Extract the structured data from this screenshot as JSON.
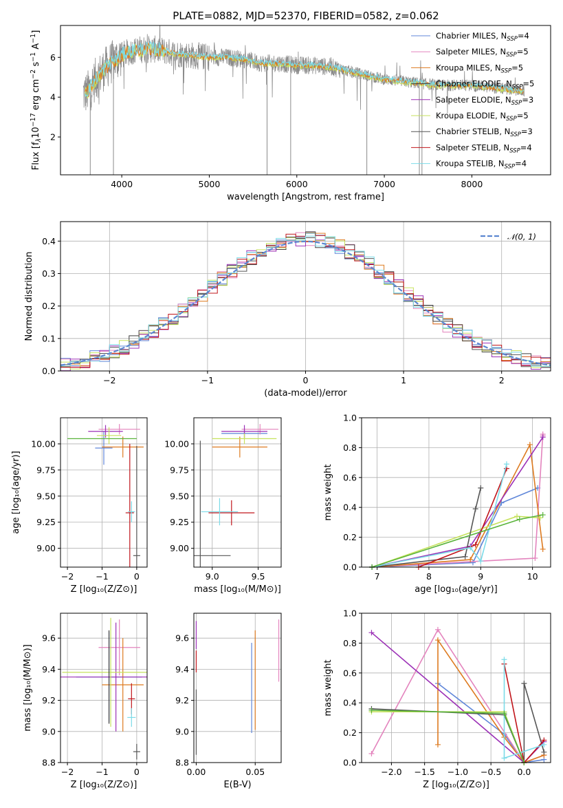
{
  "title": "PLATE=0882, MJD=52370, FIBERID=0582, z=0.062",
  "colors": {
    "Chabrier MILES": "#5f86d9",
    "Salpeter MILES": "#e383bd",
    "Kroupa MILES": "#dd7a1f",
    "Chabrier ELODIE": "#3f3f3f",
    "Salpeter ELODIE": "#9b2fb6",
    "Kroupa ELODIE": "#c6e25c",
    "Chabrier STELIB": "#555555",
    "Salpeter STELIB": "#c0141a",
    "Kroupa STELIB": "#7bdbe8",
    "normal": "#5b86d0",
    "green": "#59b33a"
  },
  "chart_data": [
    {
      "type": "line",
      "panel": "spectrum",
      "title": "PLATE=0882, MJD=52370, FIBERID=0582, z=0.062",
      "xlabel": "wavelength [Angstrom, rest frame]",
      "ylabel_text": "Flux [f",
      "ylabel_sub": "λ",
      "ylabel_rest": "10",
      "ylabel_sup1": "−17",
      "ylabel_mid": " erg cm",
      "ylabel_sup2": "−2",
      "ylabel_s": " s",
      "ylabel_sup3": "−1",
      "ylabel_a": " A",
      "ylabel_sup4": "−1",
      "ylabel_end": "]",
      "xlim": [
        3300,
        8900
      ],
      "ylim": [
        0.1,
        7.6
      ],
      "xticks": [
        4000,
        5000,
        6000,
        7000,
        8000
      ],
      "xtick_labels": [
        "4000",
        "5000",
        "6000",
        "7000",
        "8000"
      ],
      "yticks": [
        2,
        4,
        6
      ],
      "ytick_labels": [
        "2",
        "4",
        "6"
      ],
      "legend_position": "right",
      "legend": [
        {
          "name": "Chabrier MILES",
          "nssp": "4"
        },
        {
          "name": "Salpeter MILES",
          "nssp": "5"
        },
        {
          "name": "Kroupa MILES",
          "nssp": "5"
        },
        {
          "name": "Chabrier ELODIE",
          "nssp": "5"
        },
        {
          "name": "Salpeter ELODIE",
          "nssp": "3"
        },
        {
          "name": "Kroupa ELODIE",
          "nssp": "5"
        },
        {
          "name": "Chabrier STELIB",
          "nssp": "3"
        },
        {
          "name": "Salpeter STELIB",
          "nssp": "4"
        },
        {
          "name": "Kroupa STELIB",
          "nssp": "4"
        }
      ],
      "legend_nsub": "SSP",
      "legend_nprefix": "N",
      "continuum": {
        "x": [
          3600,
          3700,
          3800,
          3900,
          4000,
          4100,
          4200,
          4400,
          4600,
          4800,
          5000,
          5200,
          5400,
          5600,
          5800,
          6000,
          6200,
          6400,
          6600,
          6800,
          7000,
          7200,
          7400,
          7600,
          7800,
          8000,
          8200,
          8400,
          8600
        ],
        "y": [
          4.2,
          4.9,
          5.4,
          5.8,
          6.1,
          6.3,
          6.4,
          6.4,
          6.2,
          6.1,
          6.0,
          6.0,
          5.9,
          5.7,
          5.7,
          5.6,
          5.6,
          5.5,
          5.3,
          5.1,
          4.9,
          4.8,
          4.7,
          4.6,
          4.6,
          4.6,
          4.5,
          4.4,
          4.3
        ]
      },
      "spikes": [
        {
          "x": 3640,
          "y": 0.1
        },
        {
          "x": 3905,
          "y": 0.1
        },
        {
          "x": 5660,
          "y": 0.1
        },
        {
          "x": 5930,
          "y": 0.1
        },
        {
          "x": 6800,
          "y": 0.1
        },
        {
          "x": 7400,
          "y": 0.1
        },
        {
          "x": 7430,
          "y": 0.1
        }
      ]
    },
    {
      "type": "step",
      "panel": "residuals",
      "xlabel": "(data-model)/error",
      "ylabel": "Normed distribution",
      "xlim": [
        -2.5,
        2.5
      ],
      "ylim": [
        0,
        0.46
      ],
      "xticks": [
        -2,
        -1,
        0,
        1,
        2
      ],
      "xtick_labels": [
        "−2",
        "−1",
        "0",
        "1",
        "2"
      ],
      "yticks": [
        0,
        0.1,
        0.2,
        0.3,
        0.4
      ],
      "ytick_labels": [
        "0.0",
        "0.1",
        "0.2",
        "0.3",
        "0.4"
      ],
      "grid": true,
      "legend_position": "top-right",
      "legend_label": "𝒩(0, 1)",
      "bin_width": 0.1
    },
    {
      "type": "scatter",
      "panel": "age-vs-Z",
      "xlabel": "Z [log₁₀(Z/Z⊙)]",
      "ylabel": "age  [log₁₀(age/yr)]",
      "xlim": [
        -2.2,
        0.3
      ],
      "ylim": [
        8.82,
        10.25
      ],
      "xticks": [
        -2,
        -1,
        0
      ],
      "xtick_labels": [
        "−2",
        "−1",
        "0"
      ],
      "yticks": [
        9.0,
        9.25,
        9.5,
        9.75,
        10.0
      ],
      "ytick_labels": [
        "9.00",
        "9.25",
        "9.50",
        "9.75",
        "10.00"
      ],
      "grid": true,
      "points": [
        {
          "series": "Chabrier MILES",
          "x": -0.95,
          "y": 9.96,
          "xerr": 0.25,
          "yerr": 0.16
        },
        {
          "series": "Salpeter MILES",
          "x": -0.5,
          "y": 10.14,
          "xerr": 0.6,
          "yerr": 0.05
        },
        {
          "series": "Kroupa MILES",
          "x": -0.4,
          "y": 9.97,
          "xerr": 0.6,
          "yerr": 0.1
        },
        {
          "series": "Salpeter ELODIE",
          "x": -0.9,
          "y": 10.12,
          "xerr": 0.5,
          "yerr": 0.06
        },
        {
          "series": "Kroupa ELODIE",
          "x": -0.8,
          "y": 10.08,
          "xerr": 0.35,
          "yerr": 0.08
        },
        {
          "series": "Chabrier STELIB",
          "x": 0.0,
          "y": 8.93,
          "xerr": 0.1,
          "yerr": 1.05
        },
        {
          "series": "Salpeter STELIB",
          "x": -0.2,
          "y": 9.34,
          "xerr": 0.12,
          "yerr": 0.66
        },
        {
          "series": "Kroupa STELIB",
          "x": -0.15,
          "y": 9.35,
          "xerr": 0.1,
          "yerr": 0.1
        },
        {
          "series": "green",
          "x": -1.0,
          "y": 10.05,
          "xerr": 1.0,
          "yerr": 0.0
        }
      ]
    },
    {
      "type": "scatter",
      "panel": "age-vs-mass",
      "xlabel": "mass [log₁₀(M/M⊙)]",
      "xlim": [
        8.8,
        9.75
      ],
      "ylim": [
        8.82,
        10.25
      ],
      "xticks": [
        9.0,
        9.5
      ],
      "xtick_labels": [
        "9.0",
        "9.5"
      ],
      "yticks": [
        9.0,
        9.25,
        9.5,
        9.75,
        10.0
      ],
      "ytick_labels": [
        "9.00",
        "9.25",
        "9.50",
        "9.75",
        "10.00"
      ],
      "grid": true,
      "points": [
        {
          "series": "Chabrier MILES",
          "x": 9.35,
          "y": 10.1,
          "xerr": 0.25,
          "yerr": 0.05
        },
        {
          "series": "Salpeter MILES",
          "x": 9.52,
          "y": 10.14,
          "xerr": 0.2,
          "yerr": 0.05
        },
        {
          "series": "Kroupa MILES",
          "x": 9.3,
          "y": 9.97,
          "xerr": 0.3,
          "yerr": 0.1
        },
        {
          "series": "Salpeter ELODIE",
          "x": 9.35,
          "y": 10.12,
          "xerr": 0.25,
          "yerr": 0.06
        },
        {
          "series": "Kroupa ELODIE",
          "x": 9.35,
          "y": 10.05,
          "xerr": 0.35,
          "yerr": 0.05
        },
        {
          "series": "Chabrier STELIB",
          "x": 8.87,
          "y": 8.93,
          "xerr": 0.33,
          "yerr": 1.1
        },
        {
          "series": "Salpeter STELIB",
          "x": 9.21,
          "y": 9.34,
          "xerr": 0.25,
          "yerr": 0.12
        },
        {
          "series": "Kroupa STELIB",
          "x": 9.08,
          "y": 9.35,
          "xerr": 0.2,
          "yerr": 0.13
        }
      ]
    },
    {
      "type": "line",
      "panel": "mass-weight-vs-age",
      "xlabel": "age  [log₁₀(age/yr)]",
      "ylabel": "mass weight",
      "xlim": [
        6.7,
        10.35
      ],
      "ylim": [
        0,
        1.0
      ],
      "xticks": [
        7,
        8,
        9,
        10
      ],
      "xtick_labels": [
        "7",
        "8",
        "9",
        "10"
      ],
      "yticks": [
        0,
        0.2,
        0.4,
        0.6,
        0.8,
        1.0
      ],
      "ytick_labels": [
        "0.0",
        "0.2",
        "0.4",
        "0.6",
        "0.8",
        "1.0"
      ],
      "grid": true,
      "series": [
        {
          "name": "Chabrier MILES",
          "x": [
            6.9,
            8.85,
            9.4,
            10.1
          ],
          "y": [
            0.0,
            0.03,
            0.43,
            0.53
          ]
        },
        {
          "name": "Salpeter MILES",
          "x": [
            6.9,
            10.05,
            10.2,
            10.2
          ],
          "y": [
            0.0,
            0.06,
            0.89,
            0.88
          ]
        },
        {
          "name": "Kroupa MILES",
          "x": [
            6.9,
            8.8,
            9.95,
            10.2
          ],
          "y": [
            0.0,
            0.05,
            0.82,
            0.12
          ]
        },
        {
          "name": "Salpeter ELODIE",
          "x": [
            6.9,
            8.8,
            10.2
          ],
          "y": [
            0.0,
            0.14,
            0.87
          ]
        },
        {
          "name": "Kroupa ELODIE",
          "x": [
            6.9,
            9.7,
            10.15
          ],
          "y": [
            0.0,
            0.34,
            0.33
          ]
        },
        {
          "name": "Chabrier STELIB",
          "x": [
            6.9,
            8.7,
            8.9,
            9.0
          ],
          "y": [
            0.0,
            0.07,
            0.39,
            0.53
          ]
        },
        {
          "name": "Salpeter STELIB",
          "x": [
            7.8,
            8.9,
            9.5
          ],
          "y": [
            0.0,
            0.15,
            0.66
          ]
        },
        {
          "name": "Kroupa STELIB",
          "x": [
            6.9,
            8.8,
            9.0,
            9.5
          ],
          "y": [
            0.0,
            0.13,
            0.04,
            0.69
          ]
        },
        {
          "name": "green",
          "x": [
            6.9,
            9.75,
            10.2
          ],
          "y": [
            0.0,
            0.32,
            0.35
          ]
        }
      ]
    },
    {
      "type": "scatter",
      "panel": "mass-vs-Z",
      "xlabel": "Z [log₁₀(Z/Z⊙)]",
      "ylabel": "mass [log₁₀(M/M⊙)]",
      "xlim": [
        -2.2,
        0.3
      ],
      "ylim": [
        8.8,
        9.76
      ],
      "xticks": [
        -2,
        -1,
        0
      ],
      "xtick_labels": [
        "−2",
        "−1",
        "0"
      ],
      "yticks": [
        8.8,
        9.0,
        9.2,
        9.4,
        9.6
      ],
      "ytick_labels": [
        "8.8",
        "9.0",
        "9.2",
        "9.4",
        "9.6"
      ],
      "grid": true,
      "points": [
        {
          "series": "Chabrier MILES",
          "x": -0.8,
          "y": 9.35,
          "xerr": 0.95,
          "yerr": 0.29
        },
        {
          "series": "Salpeter MILES",
          "x": -0.5,
          "y": 9.54,
          "xerr": 0.6,
          "yerr": 0.18
        },
        {
          "series": "Kroupa MILES",
          "x": -0.4,
          "y": 9.3,
          "xerr": 0.6,
          "yerr": 0.3
        },
        {
          "series": "Salpeter ELODIE",
          "x": -0.6,
          "y": 9.35,
          "xerr": 1.6,
          "yerr": 0.35
        },
        {
          "series": "Kroupa ELODIE",
          "x": -0.75,
          "y": 9.38,
          "xerr": 1.4,
          "yerr": 0.35
        },
        {
          "series": "Chabrier STELIB",
          "x": 0.0,
          "y": 8.87,
          "xerr": 0.1,
          "yerr": 0.05
        },
        {
          "series": "Salpeter STELIB",
          "x": -0.15,
          "y": 9.21,
          "xerr": 0.1,
          "yerr": 0.1
        },
        {
          "series": "Kroupa STELIB",
          "x": -0.15,
          "y": 9.09,
          "xerr": 0.12,
          "yerr": 0.06
        },
        {
          "series": "Chabrier ELODIE",
          "x": -0.8,
          "y": 9.35,
          "xerr": 0.0,
          "yerr": 0.3
        }
      ]
    },
    {
      "type": "scatter",
      "panel": "mass-vs-EBV",
      "xlabel": "E(B-V)",
      "xlim": [
        -0.002,
        0.072
      ],
      "ylim": [
        8.8,
        9.76
      ],
      "xticks": [
        0.0,
        0.05
      ],
      "xtick_labels": [
        "0.00",
        "0.05"
      ],
      "yticks": [
        8.8,
        9.0,
        9.2,
        9.4,
        9.6
      ],
      "ytick_labels": [
        "8.8",
        "9.0",
        "9.2",
        "9.4",
        "9.6"
      ],
      "grid": true,
      "points": [
        {
          "series": "Chabrier MILES",
          "x": 0.047,
          "y": 9.28,
          "xerr": 0.0,
          "yerr": 0.29
        },
        {
          "series": "Salpeter MILES",
          "x": 0.07,
          "y": 9.52,
          "xerr": 0.0,
          "yerr": 0.2
        },
        {
          "series": "Kroupa MILES",
          "x": 0.05,
          "y": 9.33,
          "xerr": 0.0,
          "yerr": 0.32
        },
        {
          "series": "Salpeter ELODIE",
          "x": 0.0,
          "y": 9.62,
          "xerr": 0.0,
          "yerr": 0.09
        },
        {
          "series": "Chabrier STELIB",
          "x": 0.0,
          "y": 9.06,
          "xerr": 0.0,
          "yerr": 0.21
        },
        {
          "series": "Salpeter STELIB",
          "x": 0.0,
          "y": 9.45,
          "xerr": 0.0,
          "yerr": 0.07
        }
      ]
    },
    {
      "type": "line",
      "panel": "mass-weight-vs-Z",
      "xlabel": "Z [log₁₀(Z/Z⊙)]",
      "ylabel": "mass weight",
      "xlim": [
        -2.45,
        0.4
      ],
      "ylim": [
        0,
        1.0
      ],
      "xticks": [
        -2.0,
        -1.5,
        -1.0,
        -0.5,
        0.0
      ],
      "xtick_labels": [
        "−2.0",
        "−1.5",
        "−1.0",
        "−0.5",
        "0.0"
      ],
      "yticks": [
        0,
        0.2,
        0.4,
        0.6,
        0.8,
        1.0
      ],
      "ytick_labels": [
        "0.0",
        "0.2",
        "0.4",
        "0.6",
        "0.8",
        "1.0"
      ],
      "grid": true,
      "series": [
        {
          "name": "Chabrier MILES",
          "x": [
            -1.3,
            -0.3,
            0.0,
            0.3
          ],
          "y": [
            0.53,
            0.19,
            0.0,
            0.02
          ]
        },
        {
          "name": "Salpeter MILES",
          "x": [
            -2.3,
            -1.3,
            0.0,
            0.3
          ],
          "y": [
            0.06,
            0.89,
            0.0,
            0.05
          ]
        },
        {
          "name": "Kroupa MILES",
          "x": [
            -1.3,
            -1.3,
            -0.3,
            0.0,
            0.3
          ],
          "y": [
            0.12,
            0.82,
            0.17,
            0.0,
            0.05
          ]
        },
        {
          "name": "Salpeter ELODIE",
          "x": [
            -2.3,
            0.0,
            0.3
          ],
          "y": [
            0.87,
            0.0,
            0.14
          ]
        },
        {
          "name": "Kroupa ELODIE",
          "x": [
            -2.3,
            -0.3,
            0.0
          ],
          "y": [
            0.34,
            0.34,
            0.0
          ]
        },
        {
          "name": "Chabrier STELIB",
          "x": [
            -2.3,
            -0.3,
            0.0,
            0.0,
            0.3
          ],
          "y": [
            0.36,
            0.32,
            0.0,
            0.53,
            0.07
          ]
        },
        {
          "name": "Salpeter STELIB",
          "x": [
            -0.3,
            0.0,
            0.3
          ],
          "y": [
            0.66,
            0.0,
            0.15
          ]
        },
        {
          "name": "Kroupa STELIB",
          "x": [
            -0.3,
            -0.3,
            0.3
          ],
          "y": [
            0.69,
            0.03,
            0.12
          ]
        },
        {
          "name": "green",
          "x": [
            -2.3,
            -0.3,
            0.0
          ],
          "y": [
            0.35,
            0.33,
            0.0
          ]
        }
      ]
    }
  ]
}
